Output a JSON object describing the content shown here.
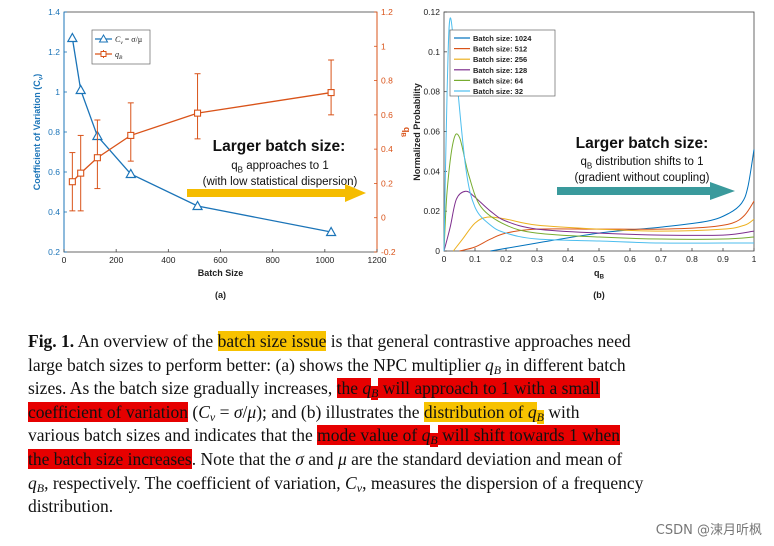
{
  "chart_data": [
    {
      "panel": "(a)",
      "type": "line",
      "xlabel": "Batch Size",
      "ylabel_left": "Coefficient of Variation (C",
      "ylabel_left_sub": "v",
      "ylabel_left_end": ")",
      "ylabel_right": "q",
      "ylabel_right_sub": "B",
      "xlim": [
        0,
        1200
      ],
      "xticks": [
        "0",
        "200",
        "400",
        "600",
        "800",
        "1000",
        "1200"
      ],
      "ylim_left": [
        0.2,
        1.4
      ],
      "yticks_left": [
        "0.2",
        "0.4",
        "0.6",
        "0.8",
        "1",
        "1.2",
        "1.4"
      ],
      "ylim_right": [
        -0.2,
        1.2
      ],
      "yticks_right": [
        "-0.2",
        "0",
        "0.2",
        "0.4",
        "0.6",
        "0.8",
        "1",
        "1.2"
      ],
      "legend": {
        "placement": "top-left",
        "cv_label": "C",
        "cv_sub": "v",
        "cv_eq": "= σ/μ",
        "qb_label": "q",
        "qb_sub": "B"
      },
      "colors": {
        "cv": "#1b74b8",
        "qb": "#d95319"
      },
      "series": [
        {
          "key": "cv",
          "axis": "left",
          "x": [
            32,
            64,
            128,
            256,
            512,
            1024
          ],
          "y": [
            1.27,
            1.01,
            0.78,
            0.59,
            0.43,
            0.3
          ]
        },
        {
          "key": "qb",
          "axis": "right",
          "x": [
            32,
            64,
            128,
            256,
            512,
            1024
          ],
          "y": [
            0.21,
            0.26,
            0.35,
            0.48,
            0.61,
            0.73
          ],
          "err_low": [
            0.04,
            0.04,
            0.17,
            0.33,
            0.46,
            0.6
          ],
          "err_high": [
            0.38,
            0.48,
            0.57,
            0.67,
            0.84,
            0.92
          ]
        }
      ],
      "annotation": {
        "title": "Larger batch size:",
        "line1_pre": "q",
        "line1_sub": "B",
        "line1_post": " approaches to 1",
        "line2": "(with low statistical dispersion)",
        "arrow_color": "#f5bc00"
      }
    },
    {
      "panel": "(b)",
      "type": "line",
      "xlabel": "q",
      "xlabel_sub": "B",
      "ylabel": "Normalized Probability",
      "xlim": [
        0,
        1
      ],
      "xticks": [
        "0",
        "0.1",
        "0.2",
        "0.3",
        "0.4",
        "0.5",
        "0.6",
        "0.7",
        "0.8",
        "0.9",
        "1"
      ],
      "ylim": [
        0,
        0.12
      ],
      "yticks": [
        "0",
        "0.02",
        "0.04",
        "0.06",
        "0.08",
        "0.1",
        "0.12"
      ],
      "legend_placement": "top-left",
      "series": [
        {
          "name": "Batch size: 1024",
          "color": "#0072bd",
          "x": [
            0.15,
            0.3,
            0.5,
            0.7,
            0.85,
            0.92,
            0.96,
            0.98,
            1.0
          ],
          "y": [
            0.0,
            0.004,
            0.009,
            0.012,
            0.015,
            0.019,
            0.024,
            0.032,
            0.051
          ]
        },
        {
          "name": "Batch size: 512",
          "color": "#d95319",
          "x": [
            0.05,
            0.1,
            0.15,
            0.2,
            0.3,
            0.5,
            0.7,
            0.85,
            0.93,
            0.97,
            1.0
          ],
          "y": [
            0.0,
            0.002,
            0.006,
            0.009,
            0.011,
            0.011,
            0.011,
            0.012,
            0.014,
            0.018,
            0.025
          ]
        },
        {
          "name": "Batch size: 256",
          "color": "#edb120",
          "x": [
            0.03,
            0.06,
            0.1,
            0.14,
            0.2,
            0.3,
            0.5,
            0.7,
            0.9,
            0.97,
            1.0
          ],
          "y": [
            0.0,
            0.006,
            0.014,
            0.017,
            0.016,
            0.013,
            0.011,
            0.01,
            0.011,
            0.013,
            0.016
          ]
        },
        {
          "name": "Batch size: 128",
          "color": "#7e2f8e",
          "x": [
            0.0,
            0.02,
            0.04,
            0.07,
            0.1,
            0.15,
            0.2,
            0.3,
            0.5,
            0.7,
            0.9,
            1.0
          ],
          "y": [
            0.0,
            0.012,
            0.026,
            0.03,
            0.027,
            0.02,
            0.015,
            0.011,
            0.009,
            0.008,
            0.008,
            0.01
          ]
        },
        {
          "name": "Batch size: 64",
          "color": "#77ac30",
          "x": [
            0.0,
            0.01,
            0.03,
            0.05,
            0.08,
            0.12,
            0.2,
            0.3,
            0.5,
            0.7,
            0.9,
            1.0
          ],
          "y": [
            0.0,
            0.03,
            0.055,
            0.057,
            0.038,
            0.022,
            0.013,
            0.009,
            0.007,
            0.006,
            0.006,
            0.007
          ]
        },
        {
          "name": "Batch size: 32",
          "color": "#4dbeee",
          "x": [
            0.0,
            0.01,
            0.02,
            0.04,
            0.07,
            0.1,
            0.15,
            0.2,
            0.3,
            0.5,
            0.7,
            0.9,
            1.0
          ],
          "y": [
            0.0,
            0.08,
            0.117,
            0.088,
            0.042,
            0.022,
            0.013,
            0.009,
            0.006,
            0.005,
            0.004,
            0.004,
            0.004
          ]
        }
      ],
      "annotation": {
        "title": "Larger batch size:",
        "line1_pre": "q",
        "line1_sub": "B",
        "line1_post": " distribution shifts to 1",
        "line2": "(gradient without coupling)",
        "arrow_color": "#3a9a9c"
      }
    }
  ],
  "caption": {
    "lines": [
      [
        {
          "t": "Fig. 1.",
          "cls": "b"
        },
        {
          "t": " An overview of the "
        },
        {
          "t": "batch size issue",
          "cls": "hl-o"
        },
        {
          "t": " is that general contrastive approaches need"
        }
      ],
      [
        {
          "t": "large batch sizes to perform better: (a) shows the NPC multiplier "
        },
        {
          "t": "q",
          "cls": "ital"
        },
        {
          "t": "B",
          "cls": "sub"
        },
        {
          "t": " in different batch"
        }
      ],
      [
        {
          "t": "sizes. As the batch size gradually increases, "
        },
        {
          "t": "the ",
          "cls": "hl-r"
        },
        {
          "t": "q",
          "cls": "hl-r ital"
        },
        {
          "t": "B",
          "cls": "hl-r sub"
        },
        {
          "t": " will approach to 1 with a small",
          "cls": "hl-r"
        }
      ],
      [
        {
          "t": "coefficient of variation",
          "cls": "hl-r"
        },
        {
          "t": " ("
        },
        {
          "t": "C",
          "cls": "ital"
        },
        {
          "t": "v",
          "cls": "sub"
        },
        {
          "t": " = "
        },
        {
          "t": "σ",
          "cls": "ital"
        },
        {
          "t": "/"
        },
        {
          "t": "μ",
          "cls": "ital"
        },
        {
          "t": "); and (b) illustrates the "
        },
        {
          "t": "distribution of ",
          "cls": "hl-o"
        },
        {
          "t": "q",
          "cls": "hl-o ital"
        },
        {
          "t": "B",
          "cls": "hl-o sub"
        },
        {
          "t": " with"
        }
      ],
      [
        {
          "t": "various batch sizes and indicates that the "
        },
        {
          "t": "mode value of ",
          "cls": "hl-r"
        },
        {
          "t": "q",
          "cls": "hl-r ital"
        },
        {
          "t": "B",
          "cls": "hl-r sub"
        },
        {
          "t": " will shift towards 1 when",
          "cls": "hl-r"
        }
      ],
      [
        {
          "t": "the batch size increases",
          "cls": "hl-r"
        },
        {
          "t": ". Note that the "
        },
        {
          "t": "σ",
          "cls": "ital"
        },
        {
          "t": " and "
        },
        {
          "t": "μ",
          "cls": "ital"
        },
        {
          "t": " are the standard deviation and mean of"
        }
      ],
      [
        {
          "t": "q",
          "cls": "ital"
        },
        {
          "t": "B",
          "cls": "sub"
        },
        {
          "t": ", respectively. The coefficient of variation, "
        },
        {
          "t": "C",
          "cls": "ital"
        },
        {
          "t": "v",
          "cls": "sub"
        },
        {
          "t": ", measures the dispersion of a frequency"
        }
      ],
      [
        {
          "t": "distribution."
        }
      ]
    ]
  },
  "watermark": "CSDN @涑月听枫"
}
